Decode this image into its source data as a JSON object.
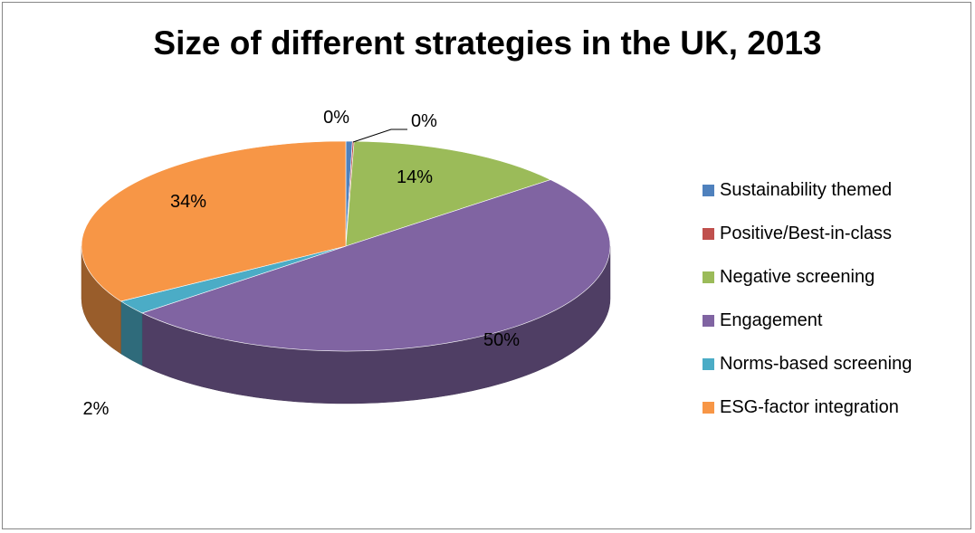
{
  "chart_data": {
    "type": "pie",
    "title": "Size of different strategies in the UK, 2013",
    "labels": [
      "Sustainability themed",
      "Positive/Best-in-class",
      "Negative screening",
      "Engagement",
      "Norms-based screening",
      "ESG-factor integration"
    ],
    "values": [
      0.4,
      0.1,
      13.6,
      49.9,
      2.2,
      33.8
    ],
    "data_labels": [
      "0%",
      "0%",
      "14%",
      "50%",
      "2%",
      "34%"
    ],
    "colors": [
      "#4F81BD",
      "#C0504D",
      "#9BBB59",
      "#8064A2",
      "#4BACC6",
      "#F79646"
    ],
    "style": "3d",
    "legend_position": "right"
  }
}
